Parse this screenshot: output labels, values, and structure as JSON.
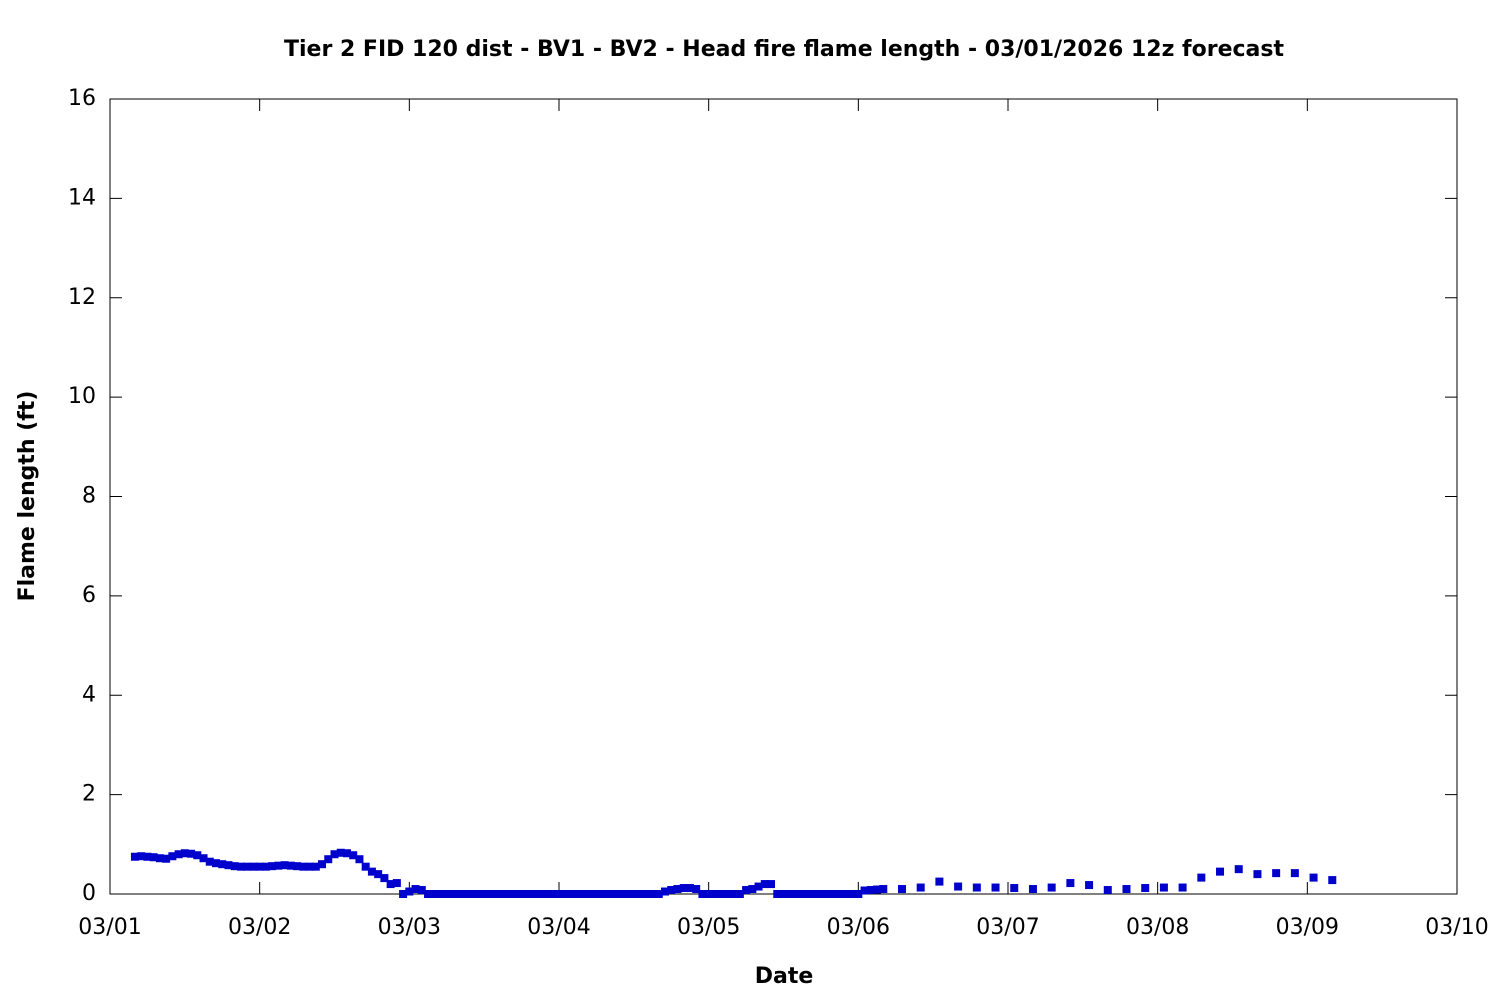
{
  "chart_data": {
    "type": "scatter",
    "title": "Tier 2 FID 120 dist - BV1 - BV2 - Head fire flame length - 03/01/2026 12z forecast",
    "x_label": "Date",
    "y_label": "Flame length (ft)",
    "color": "#0000cc",
    "xlim": [
      0,
      216
    ],
    "xticks": [
      {
        "value": 0,
        "label": "03/01"
      },
      {
        "value": 24,
        "label": "03/02"
      },
      {
        "value": 48,
        "label": "03/03"
      },
      {
        "value": 72,
        "label": "03/04"
      },
      {
        "value": 96,
        "label": "03/05"
      },
      {
        "value": 120,
        "label": "03/06"
      },
      {
        "value": 144,
        "label": "03/07"
      },
      {
        "value": 168,
        "label": "03/08"
      },
      {
        "value": 192,
        "label": "03/09"
      },
      {
        "value": 216,
        "label": "03/10"
      }
    ],
    "ylim": [
      0,
      16
    ],
    "yticks": [
      0,
      2,
      4,
      6,
      8,
      10,
      12,
      14,
      16
    ],
    "x": [
      4,
      5,
      6,
      7,
      8,
      9,
      10,
      11,
      12,
      13,
      14,
      15,
      16,
      17,
      18,
      19,
      20,
      21,
      22,
      23,
      24,
      25,
      26,
      27,
      28,
      29,
      30,
      31,
      32,
      33,
      34,
      35,
      36,
      37,
      38,
      39,
      40,
      41,
      42,
      43,
      44,
      45,
      46,
      47,
      48,
      49,
      50,
      51,
      52,
      53,
      54,
      55,
      56,
      57,
      58,
      59,
      60,
      61,
      62,
      63,
      64,
      65,
      66,
      67,
      68,
      69,
      70,
      71,
      72,
      73,
      74,
      75,
      76,
      77,
      78,
      79,
      80,
      81,
      82,
      83,
      84,
      85,
      86,
      87,
      88,
      89,
      90,
      91,
      92,
      93,
      94,
      95,
      96,
      97,
      98,
      99,
      100,
      101,
      102,
      103,
      104,
      105,
      106,
      107,
      108,
      109,
      110,
      111,
      112,
      113,
      114,
      115,
      116,
      117,
      118,
      119,
      120,
      121,
      122,
      123,
      124,
      127,
      130,
      133,
      136,
      139,
      142,
      145,
      148,
      151,
      154,
      157,
      160,
      163,
      166,
      169,
      172,
      175,
      178,
      181,
      184,
      187,
      190,
      193,
      196
    ],
    "values": [
      0.75,
      0.76,
      0.75,
      0.74,
      0.72,
      0.71,
      0.76,
      0.8,
      0.82,
      0.81,
      0.78,
      0.72,
      0.65,
      0.62,
      0.6,
      0.58,
      0.56,
      0.55,
      0.55,
      0.55,
      0.55,
      0.55,
      0.56,
      0.57,
      0.58,
      0.57,
      0.56,
      0.55,
      0.55,
      0.55,
      0.6,
      0.7,
      0.8,
      0.83,
      0.82,
      0.78,
      0.7,
      0.55,
      0.45,
      0.4,
      0.32,
      0.2,
      0.22,
      0,
      0.05,
      0.1,
      0.08,
      0,
      0,
      0,
      0,
      0,
      0,
      0,
      0,
      0,
      0,
      0,
      0,
      0,
      0,
      0,
      0,
      0,
      0,
      0,
      0,
      0,
      0,
      0,
      0,
      0,
      0,
      0,
      0,
      0,
      0,
      0,
      0,
      0,
      0,
      0,
      0,
      0,
      0,
      0.05,
      0.08,
      0.1,
      0.12,
      0.12,
      0.1,
      0,
      0,
      0,
      0,
      0,
      0,
      0,
      0.08,
      0.1,
      0.15,
      0.2,
      0.2,
      0,
      0,
      0,
      0,
      0,
      0,
      0,
      0,
      0,
      0,
      0,
      0,
      0,
      0,
      0.07,
      0.08,
      0.09,
      0.1,
      0.1,
      0.13,
      0.25,
      0.15,
      0.13,
      0.13,
      0.12,
      0.1,
      0.13,
      0.22,
      0.18,
      0.08,
      0.1,
      0.12,
      0.13,
      0.13,
      0.33,
      0.45,
      0.5,
      0.4,
      0.42,
      0.42,
      0.33,
      0.28
    ]
  }
}
